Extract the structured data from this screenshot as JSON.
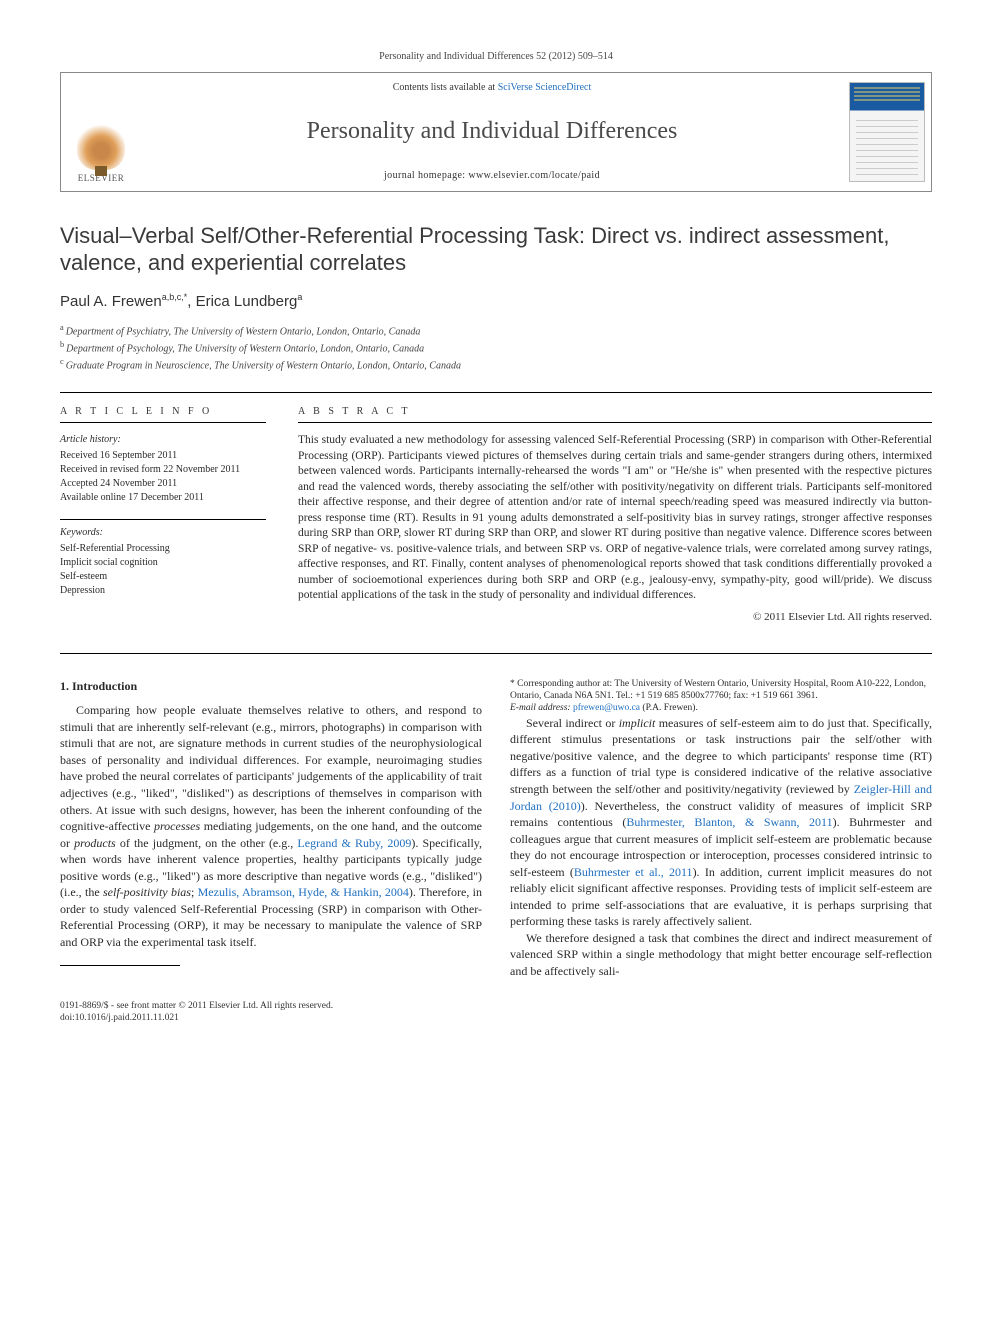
{
  "header": {
    "citation": "Personality and Individual Differences 52 (2012) 509–514",
    "contents_prefix": "Contents lists available at ",
    "contents_link": "SciVerse ScienceDirect",
    "journal_title": "Personality and Individual Differences",
    "homepage_prefix": "journal homepage: ",
    "homepage_url": "www.elsevier.com/locate/paid",
    "publisher_label": "ELSEVIER"
  },
  "article": {
    "title": "Visual–Verbal Self/Other-Referential Processing Task: Direct vs. indirect assessment, valence, and experiential correlates",
    "authors_html": "Paul A. Frewen",
    "author1_sup": "a,b,c,*",
    "author2": ", Erica Lundberg",
    "author2_sup": "a",
    "affiliations": {
      "a": "Department of Psychiatry, The University of Western Ontario, London, Ontario, Canada",
      "b": "Department of Psychology, The University of Western Ontario, London, Ontario, Canada",
      "c": "Graduate Program in Neuroscience, The University of Western Ontario, London, Ontario, Canada"
    }
  },
  "info": {
    "heading": "A R T I C L E   I N F O",
    "history_label": "Article history:",
    "received": "Received 16 September 2011",
    "revised": "Received in revised form 22 November 2011",
    "accepted": "Accepted 24 November 2011",
    "online": "Available online 17 December 2011",
    "keywords_label": "Keywords:",
    "keywords": [
      "Self-Referential Processing",
      "Implicit social cognition",
      "Self-esteem",
      "Depression"
    ]
  },
  "abstract": {
    "heading": "A B S T R A C T",
    "text": "This study evaluated a new methodology for assessing valenced Self-Referential Processing (SRP) in comparison with Other-Referential Processing (ORP). Participants viewed pictures of themselves during certain trials and same-gender strangers during others, intermixed between valenced words. Participants internally-rehearsed the words \"I am\" or \"He/she is\" when presented with the respective pictures and read the valenced words, thereby associating the self/other with positivity/negativity on different trials. Participants self-monitored their affective response, and their degree of attention and/or rate of internal speech/reading speed was measured indirectly via button-press response time (RT). Results in 91 young adults demonstrated a self-positivity bias in survey ratings, stronger affective responses during SRP than ORP, slower RT during SRP than ORP, and slower RT during positive than negative valence. Difference scores between SRP of negative- vs. positive-valence trials, and between SRP vs. ORP of negative-valence trials, were correlated among survey ratings, affective responses, and RT. Finally, content analyses of phenomenological reports showed that task conditions differentially provoked a number of socioemotional experiences during both SRP and ORP (e.g., jealousy-envy, sympathy-pity, good will/pride). We discuss potential applications of the task in the study of personality and individual differences.",
    "copyright": "© 2011 Elsevier Ltd. All rights reserved."
  },
  "body": {
    "section1_heading": "1. Introduction",
    "p1a": "Comparing how people evaluate themselves relative to others, and respond to stimuli that are inherently self-relevant (e.g., mirrors, photographs) in comparison with stimuli that are not, are signature methods in current studies of the neurophysiological bases of personality and individual differences. For example, neuroimaging studies have probed the neural correlates of participants' judgements of the applicability of trait adjectives (e.g., \"liked\", \"disliked\") as descriptions of themselves in comparison with others. At issue with such designs, however, has been the inherent confounding of the cognitive-affective ",
    "p1_processes": "processes",
    "p1b": " mediating judgements, on the one hand, and the outcome or ",
    "p1_products": "products",
    "p1c": " of the judgment, on the other (e.g., ",
    "p1_ref1": "Legrand & Ruby, 2009",
    "p1d": "). Specifically, when words have inherent valence properties, healthy participants typically judge positive words (e.g., \"liked\") as more descriptive than negative words (e.g., \"disliked\") (i.e., the ",
    "p1_spb": "self-positivity bias",
    "p1e": "; ",
    "p1_ref2": "Mezulis, Abramson, Hyde, & Hankin, 2004",
    "p1f": "). Therefore, in order to study valenced Self-Referential Processing (SRP) in comparison with Other-Referential Processing (ORP), it may be necessary to manipulate the valence of SRP and ORP via the experimental task itself.",
    "p2a": "Several indirect or ",
    "p2_implicit": "implicit",
    "p2b": " measures of self-esteem aim to do just that. Specifically, different stimulus presentations or task instructions pair the self/other with negative/positive valence, and the degree to which participants' response time (RT) differs as a function of trial type is considered indicative of the relative associative strength between the self/other and positivity/negativity (reviewed by ",
    "p2_ref1": "Zeigler-Hill and Jordan (2010)",
    "p2c": "). Nevertheless, the construct validity of measures of implicit SRP remains contentious (",
    "p2_ref2": "Buhrmester, Blanton, & Swann, 2011",
    "p2d": "). Buhrmester and colleagues argue that current measures of implicit self-esteem are problematic because they do not encourage introspection or interoception, processes considered intrinsic to self-esteem (",
    "p2_ref3": "Buhrmester et al., 2011",
    "p2e": "). In addition, current implicit measures do not reliably elicit significant affective responses. Providing tests of implicit self-esteem are intended to prime self-associations that are evaluative, it is perhaps surprising that performing these tasks is rarely affectively salient.",
    "p3": "We therefore designed a task that combines the direct and indirect measurement of valenced SRP within a single methodology that might better encourage self-reflection and be affectively sali-"
  },
  "footnote": {
    "corr_label": "* Corresponding author at: ",
    "corr_text": "The University of Western Ontario, University Hospital, Room A10-222, London, Ontario, Canada N6A 5N1. Tel.: +1 519 685 8500x77760; fax: +1 519 661 3961.",
    "email_label": "E-mail address: ",
    "email": "pfrewen@uwo.ca",
    "email_who": " (P.A. Frewen)."
  },
  "bottom": {
    "line1": "0191-8869/$ - see front matter © 2011 Elsevier Ltd. All rights reserved.",
    "line2": "doi:10.1016/j.paid.2011.11.021"
  }
}
